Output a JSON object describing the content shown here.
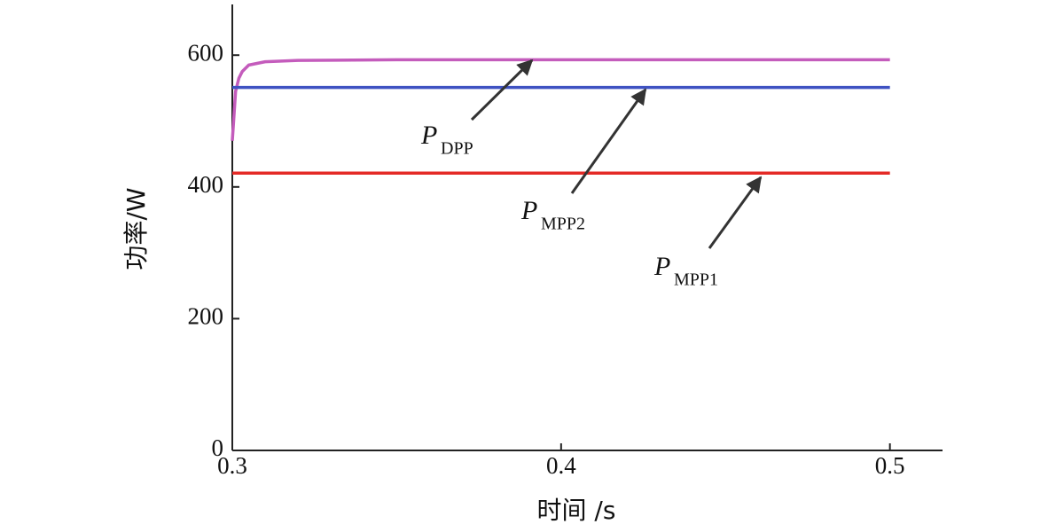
{
  "chart_data": {
    "type": "line",
    "x_label": "时间 /s",
    "y_label": "功率/W",
    "x": [
      0.3,
      0.301,
      0.302,
      0.303,
      0.305,
      0.31,
      0.32,
      0.35,
      0.4,
      0.5
    ],
    "series": [
      {
        "color": "#c45cbc",
        "values": [
          470,
          545,
          565,
          575,
          585,
          590,
          592,
          593,
          593,
          593
        ]
      },
      {
        "color": "#3f52c2",
        "values": [
          551,
          551,
          551,
          551,
          551,
          551,
          551,
          551,
          551,
          551
        ]
      },
      {
        "color": "#e42a26",
        "values": [
          421,
          421,
          421,
          421,
          421,
          421,
          421,
          421,
          421,
          421
        ]
      }
    ],
    "annotations": [
      {
        "text": "P",
        "subscript": "DPP"
      },
      {
        "text": "P",
        "subscript": "MPP2"
      },
      {
        "text": "P",
        "subscript": "MPP1"
      }
    ],
    "xlim": [
      0.3,
      0.516
    ],
    "xticks": [
      0.3,
      0.4,
      0.5
    ],
    "ylim": [
      0,
      677
    ],
    "yticks": [
      0,
      200,
      400,
      600
    ],
    "grid": false
  }
}
